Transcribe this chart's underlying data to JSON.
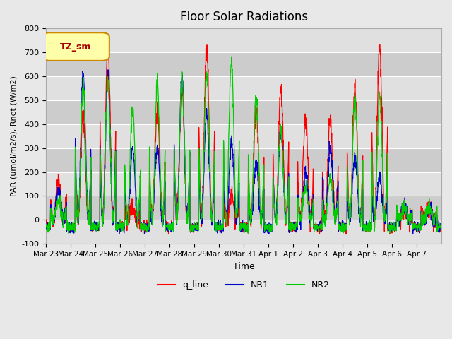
{
  "title": "Floor Solar Radiations",
  "xlabel": "Time",
  "ylabel": "PAR (umol/m2/s), Rnet (W/m2)",
  "ylim": [
    -100,
    800
  ],
  "legend_label": "TZ_sm",
  "series_labels": [
    "q_line",
    "NR1",
    "NR2"
  ],
  "series_colors": [
    "#ff0000",
    "#0000cc",
    "#00cc00"
  ],
  "xtick_labels": [
    "Mar 23",
    "Mar 24",
    "Mar 25",
    "Mar 26",
    "Mar 27",
    "Mar 28",
    "Mar 29",
    "Mar 30",
    "Mar 31",
    "Apr 1",
    "Apr 2",
    "Apr 3",
    "Apr 4",
    "Apr 5",
    "Apr 6",
    "Apr 7"
  ],
  "background_color": "#e8e8e8",
  "plot_bg_color": "#d4d4d4",
  "band_colors": [
    "#e0e0e0",
    "#cccccc"
  ],
  "yticks": [
    -100,
    0,
    100,
    200,
    300,
    400,
    500,
    600,
    700,
    800
  ],
  "legend_box_color": "#ffffaa",
  "legend_box_edge": "#cc8800",
  "legend_text_color": "#aa0000",
  "n_days": 16,
  "pts_per_day": 144
}
